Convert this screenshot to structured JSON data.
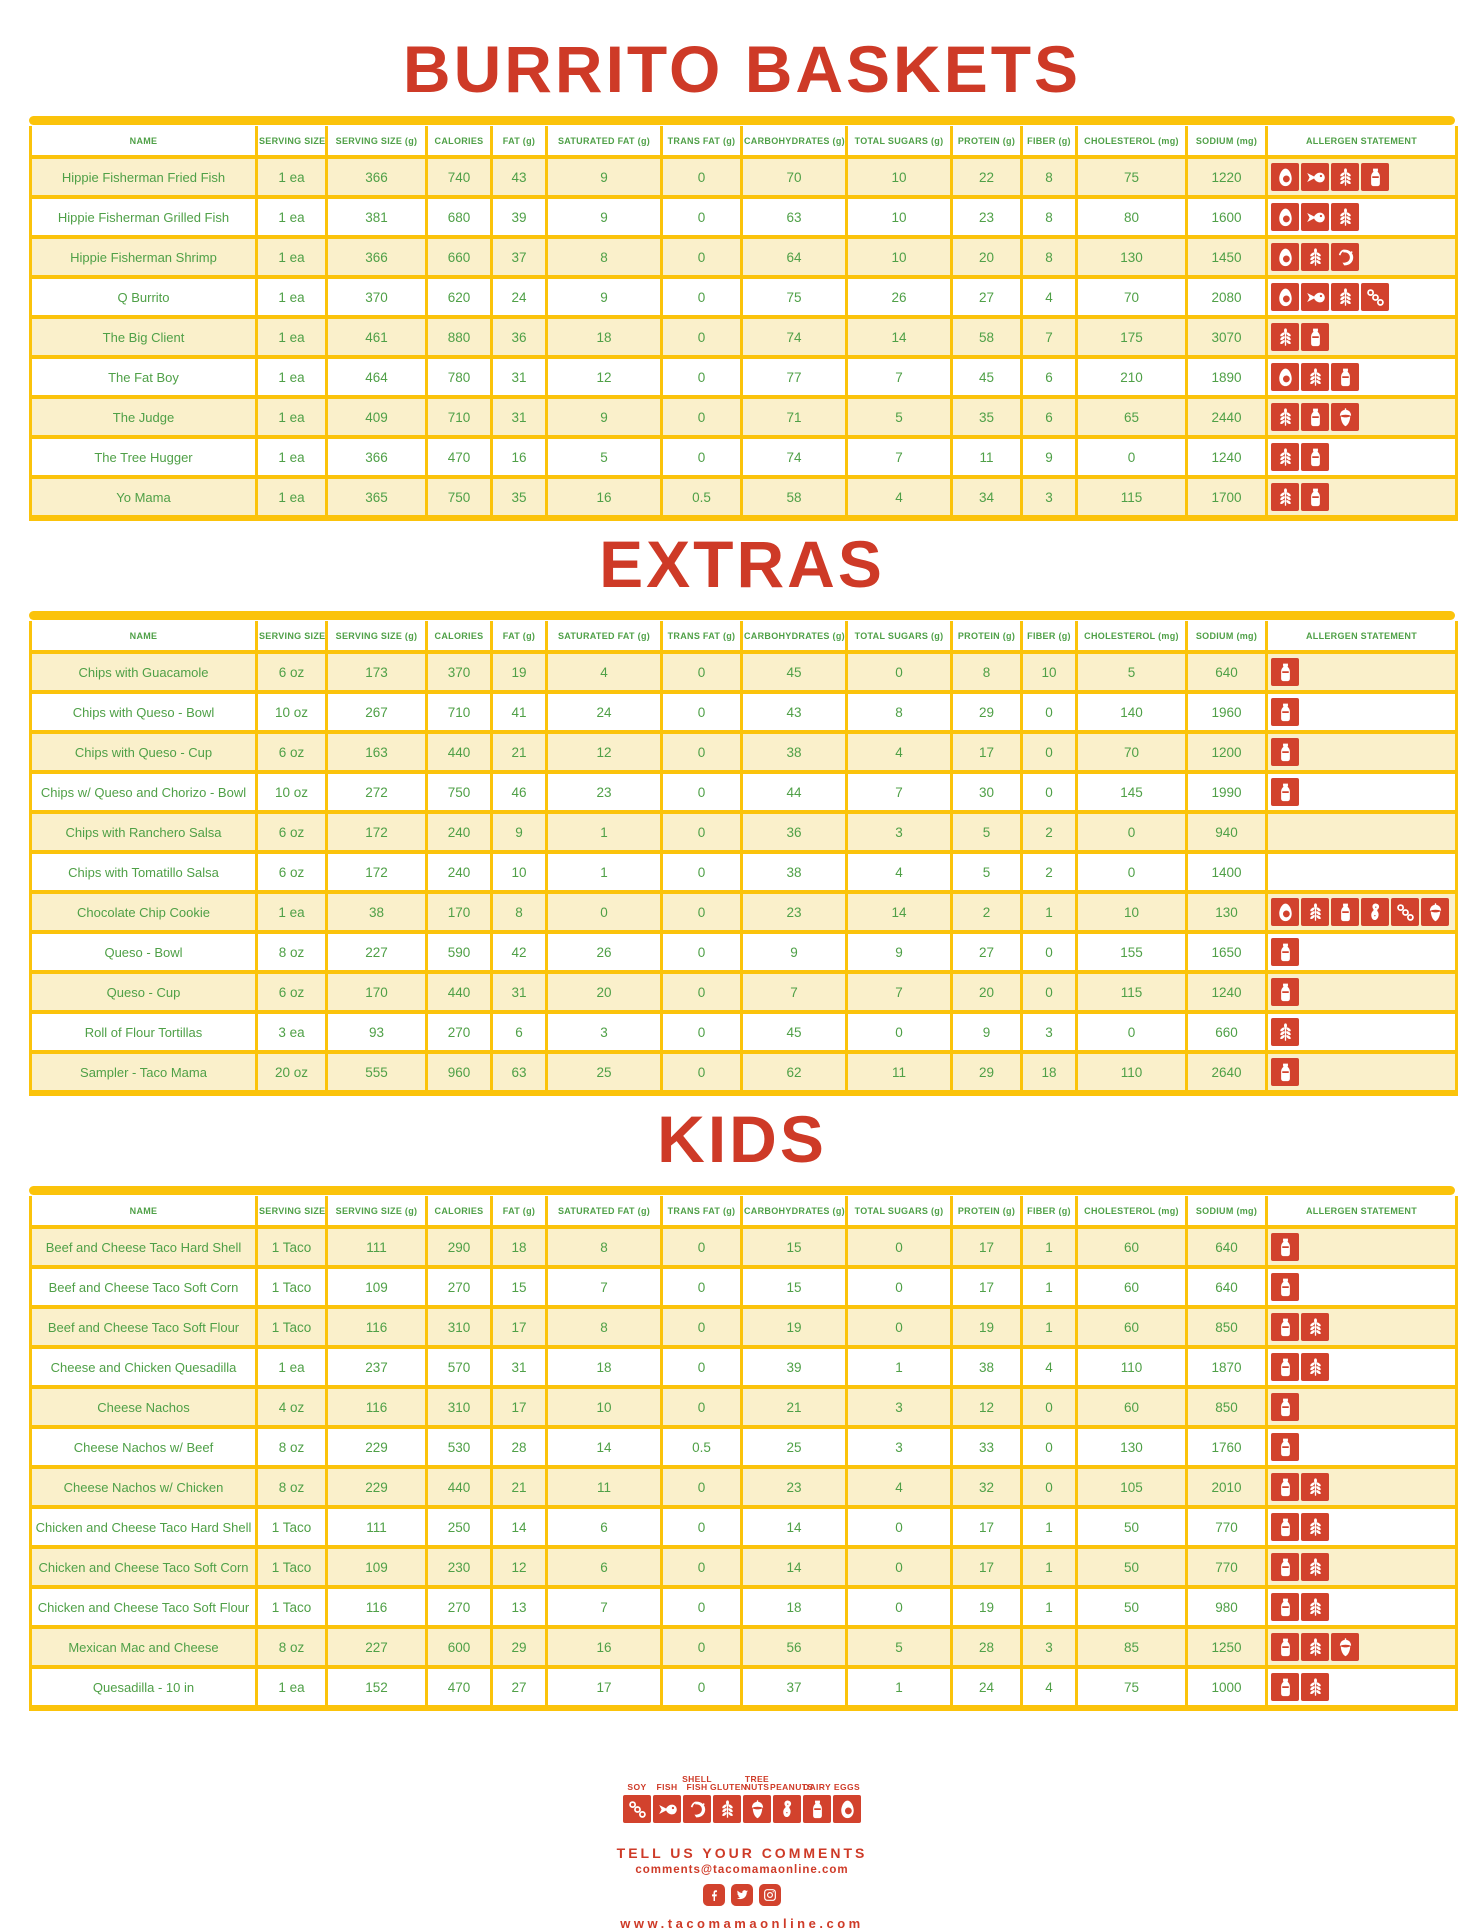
{
  "colors": {
    "accent_yellow": "#FBC30B",
    "row_cream": "#FAF0CB",
    "text_green": "#4FA047",
    "title_red": "#CE3A27",
    "icon_red": "#D2422D"
  },
  "columns": [
    "NAME",
    "SERVING SIZE",
    "SERVING SIZE (g)",
    "CALORIES",
    "FAT (g)",
    "SATURATED FAT (g)",
    "TRANS FAT (g)",
    "CARBOHYDRATES (g)",
    "TOTAL SUGARS (g)",
    "PROTEIN (g)",
    "FIBER (g)",
    "CHOLESTEROL (mg)",
    "SODIUM (mg)",
    "ALLERGEN STATEMENT"
  ],
  "sections": [
    {
      "title": "BURRITO BASKETS",
      "rows": [
        {
          "name": "Hippie Fisherman Fried Fish",
          "values": [
            "1 ea",
            "366",
            "740",
            "43",
            "9",
            "0",
            "70",
            "10",
            "22",
            "8",
            "75",
            "1220"
          ],
          "allergens": [
            "egg",
            "fish",
            "gluten",
            "dairy"
          ]
        },
        {
          "name": "Hippie Fisherman Grilled Fish",
          "values": [
            "1 ea",
            "381",
            "680",
            "39",
            "9",
            "0",
            "63",
            "10",
            "23",
            "8",
            "80",
            "1600"
          ],
          "allergens": [
            "egg",
            "fish",
            "gluten"
          ]
        },
        {
          "name": "Hippie Fisherman Shrimp",
          "values": [
            "1 ea",
            "366",
            "660",
            "37",
            "8",
            "0",
            "64",
            "10",
            "20",
            "8",
            "130",
            "1450"
          ],
          "allergens": [
            "egg",
            "gluten",
            "shellfish"
          ]
        },
        {
          "name": "Q Burrito",
          "values": [
            "1 ea",
            "370",
            "620",
            "24",
            "9",
            "0",
            "75",
            "26",
            "27",
            "4",
            "70",
            "2080"
          ],
          "allergens": [
            "egg",
            "fish",
            "gluten",
            "soy"
          ]
        },
        {
          "name": "The Big Client",
          "values": [
            "1 ea",
            "461",
            "880",
            "36",
            "18",
            "0",
            "74",
            "14",
            "58",
            "7",
            "175",
            "3070"
          ],
          "allergens": [
            "gluten",
            "dairy"
          ]
        },
        {
          "name": "The Fat Boy",
          "values": [
            "1 ea",
            "464",
            "780",
            "31",
            "12",
            "0",
            "77",
            "7",
            "45",
            "6",
            "210",
            "1890"
          ],
          "allergens": [
            "egg",
            "gluten",
            "dairy"
          ]
        },
        {
          "name": "The Judge",
          "values": [
            "1 ea",
            "409",
            "710",
            "31",
            "9",
            "0",
            "71",
            "5",
            "35",
            "6",
            "65",
            "2440"
          ],
          "allergens": [
            "gluten",
            "dairy",
            "treenut"
          ]
        },
        {
          "name": "The Tree Hugger",
          "values": [
            "1 ea",
            "366",
            "470",
            "16",
            "5",
            "0",
            "74",
            "7",
            "11",
            "9",
            "0",
            "1240"
          ],
          "allergens": [
            "gluten",
            "dairy"
          ]
        },
        {
          "name": "Yo Mama",
          "values": [
            "1 ea",
            "365",
            "750",
            "35",
            "16",
            "0.5",
            "58",
            "4",
            "34",
            "3",
            "115",
            "1700"
          ],
          "allergens": [
            "gluten",
            "dairy"
          ]
        }
      ]
    },
    {
      "title": "EXTRAS",
      "rows": [
        {
          "name": "Chips with Guacamole",
          "values": [
            "6 oz",
            "173",
            "370",
            "19",
            "4",
            "0",
            "45",
            "0",
            "8",
            "10",
            "5",
            "640"
          ],
          "allergens": [
            "dairy"
          ]
        },
        {
          "name": "Chips with Queso - Bowl",
          "values": [
            "10 oz",
            "267",
            "710",
            "41",
            "24",
            "0",
            "43",
            "8",
            "29",
            "0",
            "140",
            "1960"
          ],
          "allergens": [
            "dairy"
          ]
        },
        {
          "name": "Chips with Queso - Cup",
          "values": [
            "6 oz",
            "163",
            "440",
            "21",
            "12",
            "0",
            "38",
            "4",
            "17",
            "0",
            "70",
            "1200"
          ],
          "allergens": [
            "dairy"
          ]
        },
        {
          "name": "Chips w/ Queso and Chorizo - Bowl",
          "values": [
            "10 oz",
            "272",
            "750",
            "46",
            "23",
            "0",
            "44",
            "7",
            "30",
            "0",
            "145",
            "1990"
          ],
          "allergens": [
            "dairy"
          ]
        },
        {
          "name": "Chips with Ranchero Salsa",
          "values": [
            "6 oz",
            "172",
            "240",
            "9",
            "1",
            "0",
            "36",
            "3",
            "5",
            "2",
            "0",
            "940"
          ],
          "allergens": []
        },
        {
          "name": "Chips with Tomatillo Salsa",
          "values": [
            "6 oz",
            "172",
            "240",
            "10",
            "1",
            "0",
            "38",
            "4",
            "5",
            "2",
            "0",
            "1400"
          ],
          "allergens": []
        },
        {
          "name": "Chocolate Chip Cookie",
          "values": [
            "1 ea",
            "38",
            "170",
            "8",
            "0",
            "0",
            "23",
            "14",
            "2",
            "1",
            "10",
            "130"
          ],
          "allergens": [
            "egg",
            "gluten",
            "dairy",
            "peanut",
            "soy",
            "treenut"
          ]
        },
        {
          "name": "Queso - Bowl",
          "values": [
            "8 oz",
            "227",
            "590",
            "42",
            "26",
            "0",
            "9",
            "9",
            "27",
            "0",
            "155",
            "1650"
          ],
          "allergens": [
            "dairy"
          ]
        },
        {
          "name": "Queso - Cup",
          "values": [
            "6 oz",
            "170",
            "440",
            "31",
            "20",
            "0",
            "7",
            "7",
            "20",
            "0",
            "115",
            "1240"
          ],
          "allergens": [
            "dairy"
          ]
        },
        {
          "name": "Roll of Flour Tortillas",
          "values": [
            "3 ea",
            "93",
            "270",
            "6",
            "3",
            "0",
            "45",
            "0",
            "9",
            "3",
            "0",
            "660"
          ],
          "allergens": [
            "gluten"
          ]
        },
        {
          "name": "Sampler - Taco Mama",
          "values": [
            "20 oz",
            "555",
            "960",
            "63",
            "25",
            "0",
            "62",
            "11",
            "29",
            "18",
            "110",
            "2640"
          ],
          "allergens": [
            "dairy"
          ]
        }
      ]
    },
    {
      "title": "KIDS",
      "rows": [
        {
          "name": "Beef and Cheese Taco Hard Shell",
          "values": [
            "1 Taco",
            "111",
            "290",
            "18",
            "8",
            "0",
            "15",
            "0",
            "17",
            "1",
            "60",
            "640"
          ],
          "allergens": [
            "dairy"
          ]
        },
        {
          "name": "Beef and Cheese Taco Soft Corn",
          "values": [
            "1 Taco",
            "109",
            "270",
            "15",
            "7",
            "0",
            "15",
            "0",
            "17",
            "1",
            "60",
            "640"
          ],
          "allergens": [
            "dairy"
          ]
        },
        {
          "name": "Beef and Cheese Taco Soft Flour",
          "values": [
            "1 Taco",
            "116",
            "310",
            "17",
            "8",
            "0",
            "19",
            "0",
            "19",
            "1",
            "60",
            "850"
          ],
          "allergens": [
            "dairy",
            "gluten"
          ]
        },
        {
          "name": "Cheese and Chicken Quesadilla",
          "values": [
            "1 ea",
            "237",
            "570",
            "31",
            "18",
            "0",
            "39",
            "1",
            "38",
            "4",
            "110",
            "1870"
          ],
          "allergens": [
            "dairy",
            "gluten"
          ]
        },
        {
          "name": "Cheese Nachos",
          "values": [
            "4 oz",
            "116",
            "310",
            "17",
            "10",
            "0",
            "21",
            "3",
            "12",
            "0",
            "60",
            "850"
          ],
          "allergens": [
            "dairy"
          ]
        },
        {
          "name": "Cheese Nachos w/ Beef",
          "values": [
            "8 oz",
            "229",
            "530",
            "28",
            "14",
            "0.5",
            "25",
            "3",
            "33",
            "0",
            "130",
            "1760"
          ],
          "allergens": [
            "dairy"
          ]
        },
        {
          "name": "Cheese Nachos w/ Chicken",
          "values": [
            "8 oz",
            "229",
            "440",
            "21",
            "11",
            "0",
            "23",
            "4",
            "32",
            "0",
            "105",
            "2010"
          ],
          "allergens": [
            "dairy",
            "gluten"
          ]
        },
        {
          "name": "Chicken and Cheese Taco Hard Shell",
          "values": [
            "1 Taco",
            "111",
            "250",
            "14",
            "6",
            "0",
            "14",
            "0",
            "17",
            "1",
            "50",
            "770"
          ],
          "allergens": [
            "dairy",
            "gluten"
          ]
        },
        {
          "name": "Chicken and Cheese Taco Soft Corn",
          "values": [
            "1 Taco",
            "109",
            "230",
            "12",
            "6",
            "0",
            "14",
            "0",
            "17",
            "1",
            "50",
            "770"
          ],
          "allergens": [
            "dairy",
            "gluten"
          ]
        },
        {
          "name": "Chicken and Cheese Taco Soft Flour",
          "values": [
            "1 Taco",
            "116",
            "270",
            "13",
            "7",
            "0",
            "18",
            "0",
            "19",
            "1",
            "50",
            "980"
          ],
          "allergens": [
            "dairy",
            "gluten"
          ]
        },
        {
          "name": "Mexican Mac and Cheese",
          "values": [
            "8 oz",
            "227",
            "600",
            "29",
            "16",
            "0",
            "56",
            "5",
            "28",
            "3",
            "85",
            "1250"
          ],
          "allergens": [
            "dairy",
            "gluten",
            "treenut"
          ]
        },
        {
          "name": "Quesadilla - 10 in",
          "values": [
            "1 ea",
            "152",
            "470",
            "27",
            "17",
            "0",
            "37",
            "1",
            "24",
            "4",
            "75",
            "1000"
          ],
          "allergens": [
            "dairy",
            "gluten"
          ]
        }
      ]
    }
  ],
  "legend": {
    "items": [
      {
        "label": "SOY",
        "icon": "soy"
      },
      {
        "label": "FISH",
        "icon": "fish"
      },
      {
        "label": "SHELL FISH",
        "icon": "shellfish"
      },
      {
        "label": "GLUTEN",
        "icon": "gluten"
      },
      {
        "label": "TREE NUTS",
        "icon": "treenut"
      },
      {
        "label": "PEANUTS",
        "icon": "peanut"
      },
      {
        "label": "DAIRY",
        "icon": "dairy"
      },
      {
        "label": "EGGS",
        "icon": "egg"
      }
    ]
  },
  "footer": {
    "comments_title": "TELL US YOUR COMMENTS",
    "email": "comments@tacomamaonline.com",
    "website": "www.tacomamaonline.com",
    "social": [
      "facebook",
      "twitter",
      "instagram"
    ]
  }
}
